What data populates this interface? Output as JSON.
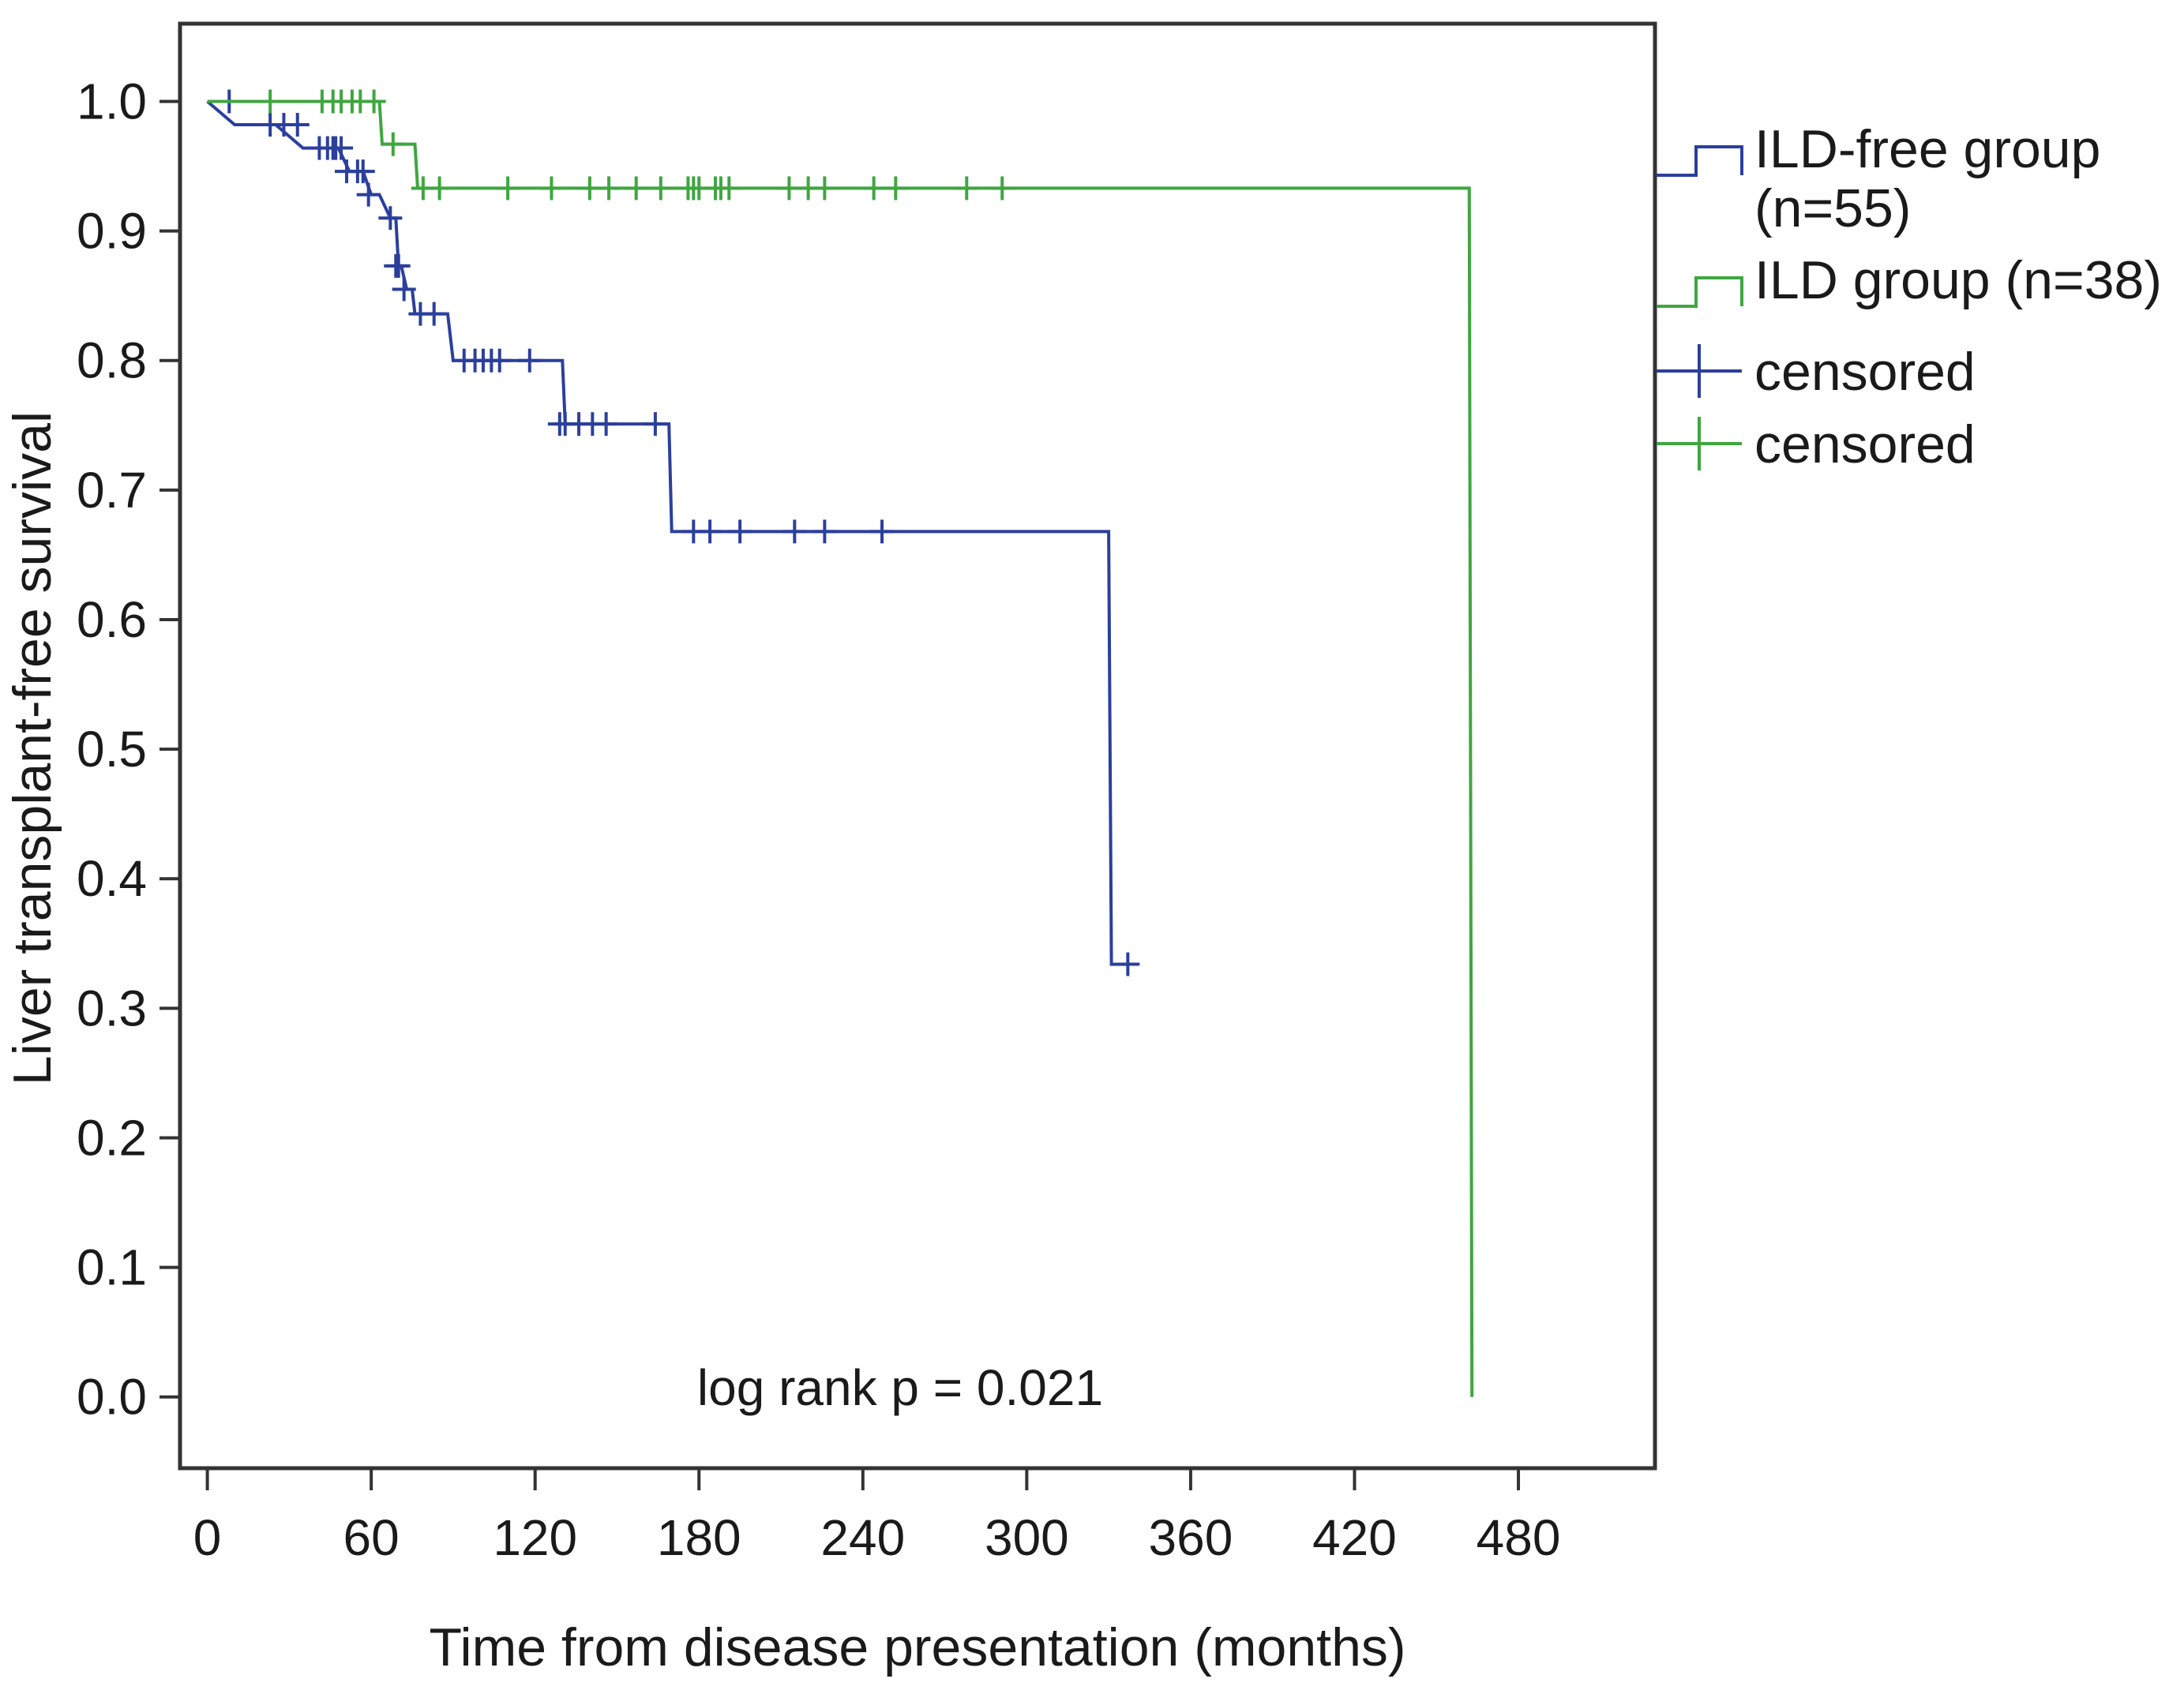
{
  "chart_data": {
    "type": "line",
    "subtype": "kaplan-meier",
    "xlabel": "Time from disease presentation (months)",
    "ylabel": "Liver transplant-free survival",
    "xlim": [
      -10,
      530
    ],
    "ylim": [
      -0.055,
      1.06
    ],
    "xticks": [
      0,
      60,
      120,
      180,
      240,
      300,
      360,
      420,
      480
    ],
    "xtick_labels": [
      "0",
      "60",
      "120",
      "180",
      "240",
      "300",
      "360",
      "420",
      "480"
    ],
    "yticks": [
      0.0,
      0.1,
      0.2,
      0.3,
      0.4,
      0.5,
      0.6,
      0.7,
      0.8,
      0.9,
      1.0
    ],
    "ytick_labels": [
      "0.0",
      "0.1",
      "0.2",
      "0.3",
      "0.4",
      "0.5",
      "0.6",
      "0.7",
      "0.8",
      "0.9",
      "1.0"
    ],
    "grid": false,
    "legend_position": "right",
    "annotation": "log rank p = 0.021",
    "series": [
      {
        "name": "ILD-free group (n=55)",
        "legend_lines": [
          "ILD-free group",
          "(n=55)"
        ],
        "color": "#2b3f9c",
        "steps": [
          [
            0,
            1.0
          ],
          [
            10,
            0.982
          ],
          [
            25,
            0.982
          ],
          [
            35,
            0.964
          ],
          [
            48,
            0.964
          ],
          [
            52,
            0.946
          ],
          [
            57,
            0.946
          ],
          [
            60,
            0.928
          ],
          [
            63,
            0.928
          ],
          [
            67,
            0.91
          ],
          [
            69,
            0.91
          ],
          [
            70,
            0.873
          ],
          [
            71,
            0.873
          ],
          [
            73,
            0.855
          ],
          [
            75,
            0.855
          ],
          [
            76,
            0.836
          ],
          [
            88,
            0.836
          ],
          [
            90,
            0.8
          ],
          [
            130,
            0.8
          ],
          [
            131,
            0.751
          ],
          [
            169,
            0.751
          ],
          [
            170,
            0.668
          ],
          [
            330,
            0.668
          ],
          [
            331,
            0.334
          ],
          [
            337,
            0.334
          ]
        ],
        "censored": [
          [
            8,
            1.0
          ],
          [
            23,
            0.982
          ],
          [
            28,
            0.982
          ],
          [
            33,
            0.982
          ],
          [
            41,
            0.964
          ],
          [
            44,
            0.964
          ],
          [
            46,
            0.964
          ],
          [
            47,
            0.964
          ],
          [
            49,
            0.964
          ],
          [
            51,
            0.946
          ],
          [
            55,
            0.946
          ],
          [
            57,
            0.946
          ],
          [
            59,
            0.928
          ],
          [
            67,
            0.91
          ],
          [
            69,
            0.873
          ],
          [
            70,
            0.873
          ],
          [
            72,
            0.855
          ],
          [
            78,
            0.836
          ],
          [
            83,
            0.836
          ],
          [
            94,
            0.8
          ],
          [
            98,
            0.8
          ],
          [
            101,
            0.8
          ],
          [
            104,
            0.8
          ],
          [
            107,
            0.8
          ],
          [
            118,
            0.8
          ],
          [
            129,
            0.751
          ],
          [
            131,
            0.751
          ],
          [
            136,
            0.751
          ],
          [
            141,
            0.751
          ],
          [
            146,
            0.751
          ],
          [
            164,
            0.751
          ],
          [
            178,
            0.668
          ],
          [
            184,
            0.668
          ],
          [
            195,
            0.668
          ],
          [
            215,
            0.668
          ],
          [
            226,
            0.668
          ],
          [
            247,
            0.668
          ],
          [
            337,
            0.334
          ]
        ]
      },
      {
        "name": "ILD group (n=38)",
        "legend_lines": [
          "ILD group (n=38)"
        ],
        "color": "#3fa63f",
        "steps": [
          [
            0,
            1.0
          ],
          [
            63,
            1.0
          ],
          [
            64,
            0.967
          ],
          [
            76,
            0.967
          ],
          [
            77,
            0.933
          ],
          [
            462,
            0.933
          ],
          [
            463,
            0.0
          ]
        ],
        "censored": [
          [
            23,
            1.0
          ],
          [
            42,
            1.0
          ],
          [
            46,
            1.0
          ],
          [
            49,
            1.0
          ],
          [
            53,
            1.0
          ],
          [
            56,
            1.0
          ],
          [
            61,
            1.0
          ],
          [
            68,
            0.967
          ],
          [
            79,
            0.933
          ],
          [
            85,
            0.933
          ],
          [
            110,
            0.933
          ],
          [
            126,
            0.933
          ],
          [
            140,
            0.933
          ],
          [
            147,
            0.933
          ],
          [
            157,
            0.933
          ],
          [
            166,
            0.933
          ],
          [
            176,
            0.933
          ],
          [
            178,
            0.933
          ],
          [
            180,
            0.933
          ],
          [
            186,
            0.933
          ],
          [
            188,
            0.933
          ],
          [
            191,
            0.933
          ],
          [
            213,
            0.933
          ],
          [
            220,
            0.933
          ],
          [
            226,
            0.933
          ],
          [
            244,
            0.933
          ],
          [
            252,
            0.933
          ],
          [
            278,
            0.933
          ],
          [
            291,
            0.933
          ]
        ]
      }
    ],
    "censored_legend": [
      {
        "label": "censored",
        "series": 0
      },
      {
        "label": "censored",
        "series": 1
      }
    ]
  }
}
